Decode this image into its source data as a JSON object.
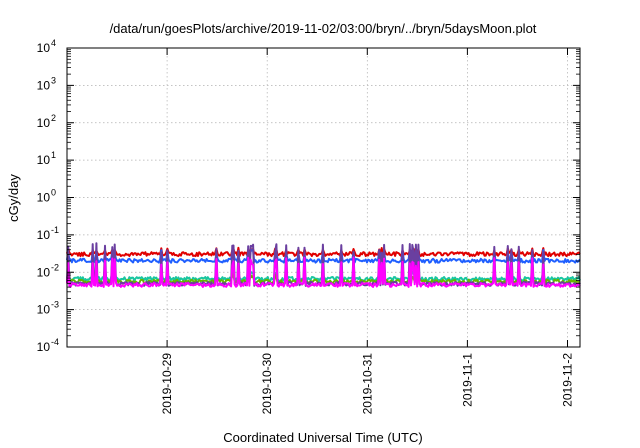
{
  "chart_data": {
    "type": "line",
    "title": "/data/run/goesPlots/archive/2019-11-02/03:00/bryn/../bryn/5daysMoon.plot",
    "xlabel": "Coordinated Universal Time (UTC)",
    "ylabel": "cGy/day",
    "y_scale": "log",
    "ylim": [
      0.0001,
      10000
    ],
    "y_ticks": [
      {
        "base": "10",
        "exp": "4"
      },
      {
        "base": "10",
        "exp": "3"
      },
      {
        "base": "10",
        "exp": "2"
      },
      {
        "base": "10",
        "exp": "1"
      },
      {
        "base": "10",
        "exp": "0"
      },
      {
        "base": "10",
        "exp": "-1"
      },
      {
        "base": "10",
        "exp": "-2"
      },
      {
        "base": "10",
        "exp": "-3"
      },
      {
        "base": "10",
        "exp": "-4"
      }
    ],
    "xlim": [
      "2019-10-28 00:00",
      "2019-11-02 03:00"
    ],
    "x_ticks": [
      "2019-10-29",
      "2019-10-30",
      "2019-10-31",
      "2019-11-1",
      "2019-11-2"
    ],
    "grid": true,
    "series_colors": {
      "red": "#e00000",
      "blue": "#1f5fff",
      "cyan": "#19c6a0",
      "green": "#66b400",
      "purple": "#6a3fa0",
      "magenta": "#ff00ff"
    },
    "series": [
      {
        "color": "red",
        "level": 0.03,
        "spike": 0.045
      },
      {
        "color": "blue",
        "level": 0.02,
        "spike": 0.04
      },
      {
        "color": "cyan",
        "level": 0.0065,
        "spike": 0.011
      },
      {
        "color": "green",
        "level": 0.0055,
        "spike": 0.009
      },
      {
        "color": "purple",
        "level": 0.0048,
        "spike": 0.06
      },
      {
        "color": "magenta",
        "level": 0.0045,
        "spike": 0.025
      }
    ]
  }
}
